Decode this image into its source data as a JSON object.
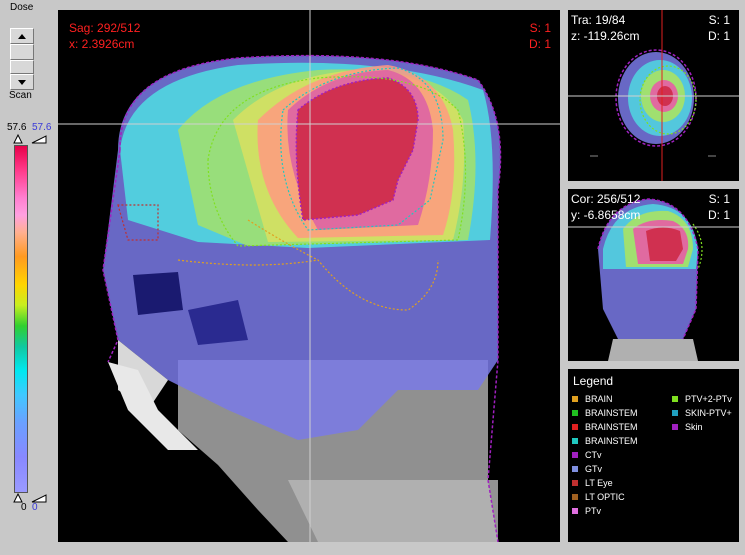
{
  "controls": {
    "dose_label": "Dose",
    "scan_label": "Scan"
  },
  "colorbar": {
    "max_value": "57.6",
    "max_value_blue": "57.6",
    "min_value": "0",
    "min_value_blue": "0"
  },
  "sagittal": {
    "slice": "Sag: 292/512",
    "position": "x: 2.3926cm",
    "s": "S: 1",
    "d": "D: 1"
  },
  "transverse": {
    "slice": "Tra: 19/84",
    "position": "z: -119.26cm",
    "s": "S: 1",
    "d": "D: 1"
  },
  "coronal": {
    "slice": "Cor: 256/512",
    "position": "y: -6.8658cm",
    "s": "S: 1",
    "d": "D: 1"
  },
  "legend": {
    "title": "Legend",
    "items": [
      {
        "label": "BRAIN",
        "color": "#e0a020"
      },
      {
        "label": "BRAINSTEM",
        "color": "#20c020"
      },
      {
        "label": "BRAINSTEM",
        "color": "#e02020"
      },
      {
        "label": "BRAINSTEM",
        "color": "#20c8c0"
      },
      {
        "label": "CTv",
        "color": "#a020c0"
      },
      {
        "label": "GTv",
        "color": "#8090e0"
      },
      {
        "label": "LT Eye",
        "color": "#c03030"
      },
      {
        "label": "LT OPTIC",
        "color": "#a06020"
      },
      {
        "label": "PTv",
        "color": "#e070e0"
      },
      {
        "label": "PTV+2-PTv",
        "color": "#80e020"
      },
      {
        "label": "SKIN-PTV+",
        "color": "#20a0c0"
      },
      {
        "label": "Skin",
        "color": "#a020c0"
      }
    ]
  }
}
